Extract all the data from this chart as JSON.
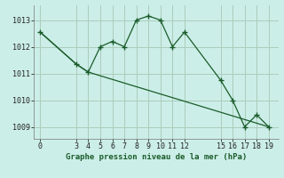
{
  "title": "Graphe pression niveau de la mer (hPa)",
  "background_color": "#cceee8",
  "grid_color": "#aaccbb",
  "line_color": "#1a5c2a",
  "series1_x": [
    0,
    3,
    4,
    5,
    6,
    7,
    8,
    9,
    10,
    11,
    12,
    15,
    16,
    17,
    18,
    19
  ],
  "series1_y": [
    1012.55,
    1011.35,
    1011.05,
    1012.0,
    1012.2,
    1012.0,
    1013.0,
    1013.15,
    1013.0,
    1012.0,
    1012.55,
    1010.75,
    1010.0,
    1009.0,
    1009.45,
    1009.0
  ],
  "series2_x": [
    0,
    3,
    4,
    19
  ],
  "series2_y": [
    1012.55,
    1011.35,
    1011.05,
    1009.0
  ],
  "xticks": [
    0,
    3,
    4,
    5,
    6,
    7,
    8,
    9,
    10,
    11,
    12,
    15,
    16,
    17,
    18,
    19
  ],
  "yticks": [
    1009,
    1010,
    1011,
    1012,
    1013
  ],
  "xlim": [
    -0.5,
    19.8
  ],
  "ylim": [
    1008.55,
    1013.55
  ],
  "xlabel": "Graphe pression niveau de la mer (hPa)",
  "tick_fontsize": 6.0,
  "label_fontsize": 6.5
}
